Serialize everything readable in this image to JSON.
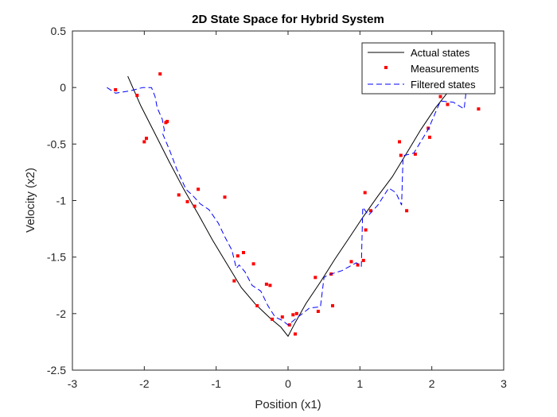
{
  "chart_data": {
    "type": "line",
    "title": "2D State Space for Hybrid System",
    "xlabel": "Position (x1)",
    "ylabel": "Velocity (x2)",
    "xlim": [
      -3,
      3
    ],
    "ylim": [
      -2.5,
      0.5
    ],
    "x_ticks": [
      -3,
      -2,
      -1,
      0,
      1,
      2,
      3
    ],
    "y_ticks": [
      -2.5,
      -2,
      -1.5,
      -1,
      -0.5,
      0,
      0.5
    ],
    "x_tick_labels": [
      "-3",
      "-2",
      "-1",
      "0",
      "1",
      "2",
      "3"
    ],
    "y_tick_labels": [
      "-2.5",
      "-2",
      "-1.5",
      "-1",
      "-0.5",
      "0",
      "0.5"
    ],
    "grid": false,
    "legend_position": "top-right",
    "series": [
      {
        "name": "Actual states",
        "style": "solid-line",
        "color": "#000000",
        "x": [
          -2.23,
          -2.05,
          -1.85,
          -1.65,
          -1.45,
          -1.25,
          -1.05,
          -0.85,
          -0.65,
          -0.45,
          -0.25,
          -0.1,
          0.0,
          0.1,
          0.25,
          0.45,
          0.65,
          0.85,
          1.05,
          1.25,
          1.45,
          1.65,
          1.85,
          2.05,
          2.25,
          2.45
        ],
        "y": [
          0.1,
          -0.16,
          -0.41,
          -0.66,
          -0.9,
          -1.12,
          -1.35,
          -1.56,
          -1.77,
          -1.92,
          -2.04,
          -2.12,
          -2.2,
          -2.08,
          -1.91,
          -1.72,
          -1.52,
          -1.33,
          -1.14,
          -0.96,
          -0.79,
          -0.58,
          -0.37,
          -0.18,
          -0.02,
          0.09
        ]
      },
      {
        "name": "Measurements",
        "style": "markers",
        "color": "#ff0000",
        "x": [
          -2.4,
          -2.1,
          -2.0,
          -1.97,
          -1.78,
          -1.7,
          -1.68,
          -1.52,
          -1.4,
          -1.3,
          -1.25,
          -0.88,
          -0.7,
          -0.62,
          -0.75,
          -0.48,
          -0.43,
          -0.3,
          -0.25,
          -0.22,
          -0.08,
          0.02,
          0.07,
          0.1,
          0.12,
          0.38,
          0.42,
          0.6,
          0.62,
          0.88,
          0.97,
          1.05,
          1.07,
          1.08,
          1.15,
          1.55,
          1.57,
          1.65,
          1.77,
          1.95,
          1.97,
          2.12,
          2.22,
          2.65
        ],
        "y": [
          -0.02,
          -0.07,
          -0.48,
          -0.45,
          0.12,
          -0.31,
          -0.3,
          -0.95,
          -1.01,
          -1.05,
          -0.9,
          -0.97,
          -1.49,
          -1.46,
          -1.71,
          -1.56,
          -1.93,
          -1.74,
          -1.75,
          -2.05,
          -2.03,
          -2.1,
          -2.01,
          -2.18,
          -2.0,
          -1.68,
          -1.98,
          -1.65,
          -1.93,
          -1.54,
          -1.57,
          -1.53,
          -0.93,
          -1.26,
          -1.09,
          -0.48,
          -0.6,
          -1.09,
          -0.59,
          -0.36,
          -0.44,
          -0.08,
          -0.15,
          -0.19
        ]
      },
      {
        "name": "Filtered states",
        "style": "dashed-line",
        "color": "#0000ff",
        "x": [
          -2.52,
          -2.4,
          -2.2,
          -2.02,
          -1.9,
          -1.85,
          -1.82,
          -1.75,
          -1.72,
          -1.75,
          -1.65,
          -1.55,
          -1.42,
          -1.32,
          -1.22,
          -1.1,
          -0.97,
          -0.88,
          -0.78,
          -0.72,
          -0.68,
          -0.6,
          -0.5,
          -0.38,
          -0.28,
          -0.18,
          -0.08,
          0.0,
          0.1,
          0.3,
          0.45,
          0.5,
          0.55,
          0.75,
          0.95,
          1.02,
          1.04,
          1.12,
          1.25,
          1.4,
          1.5,
          1.58,
          1.6,
          1.62,
          1.75,
          1.95,
          2.12,
          2.3,
          2.45,
          2.48
        ],
        "y": [
          0.0,
          -0.05,
          -0.03,
          0.0,
          0.0,
          -0.08,
          -0.18,
          -0.28,
          -0.38,
          -0.4,
          -0.55,
          -0.72,
          -0.9,
          -0.96,
          -1.03,
          -1.08,
          -1.2,
          -1.32,
          -1.44,
          -1.6,
          -1.57,
          -1.63,
          -1.75,
          -1.8,
          -1.93,
          -2.03,
          -2.06,
          -2.1,
          -2.05,
          -1.95,
          -1.94,
          -1.68,
          -1.66,
          -1.62,
          -1.55,
          -1.58,
          -1.06,
          -1.13,
          -1.04,
          -0.89,
          -0.93,
          -1.04,
          -0.62,
          -0.6,
          -0.58,
          -0.37,
          -0.12,
          -0.13,
          -0.19,
          -0.02
        ]
      }
    ]
  }
}
